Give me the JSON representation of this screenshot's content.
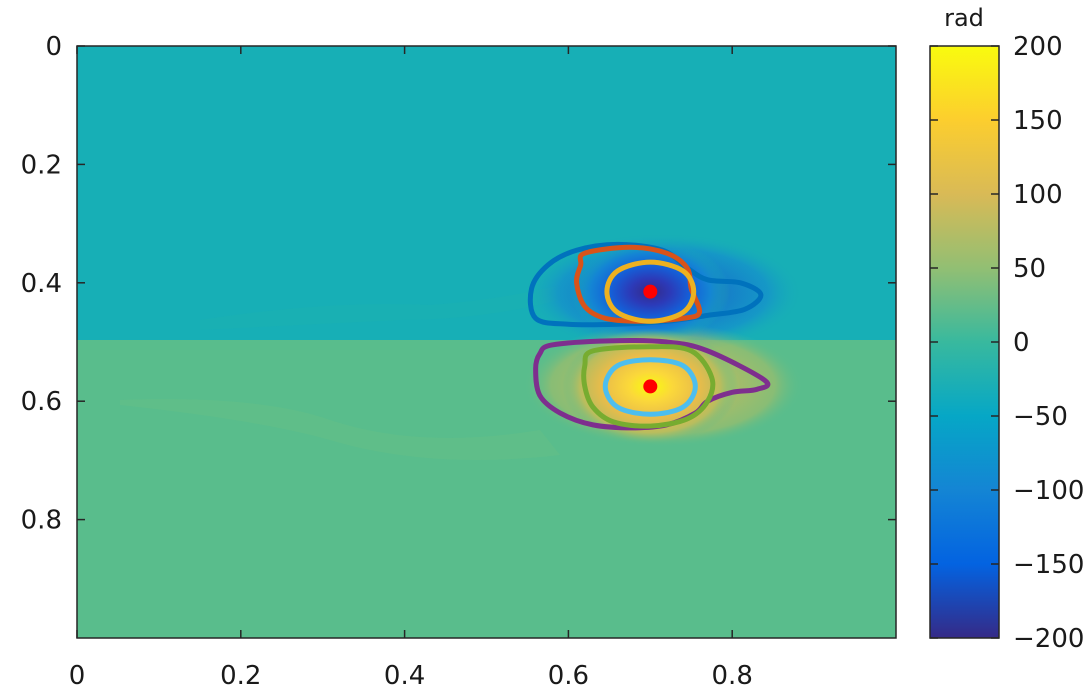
{
  "chart_data": {
    "type": "heatmap",
    "title": "",
    "xlabel": "",
    "ylabel": "",
    "xlim": [
      0,
      1
    ],
    "ylim": [
      0,
      1
    ],
    "y_axis_reversed": true,
    "x_ticks": [
      0,
      0.2,
      0.4,
      0.6,
      0.8
    ],
    "x_tick_labels": [
      "0",
      "0.2",
      "0.4",
      "0.6",
      "0.8"
    ],
    "y_ticks": [
      0,
      0.2,
      0.4,
      0.6,
      0.8
    ],
    "y_tick_labels": [
      "0",
      "0.2",
      "0.4",
      "0.6",
      "0.8"
    ],
    "grid": false,
    "colormap": "parula",
    "colorbar": {
      "label": "rad",
      "range": [
        -200,
        200
      ],
      "ticks": [
        200,
        150,
        100,
        50,
        0,
        -50,
        -100,
        -150,
        -200
      ],
      "tick_labels": [
        "200",
        "150",
        "100",
        "50",
        "0",
        "−50",
        "−100",
        "−150",
        "−200"
      ]
    },
    "field": {
      "background_upper_value": -25,
      "background_lower_value": 25,
      "interface_y": 0.49,
      "negative_vortex": {
        "center": [
          0.7,
          0.415
        ],
        "peak_value": -200
      },
      "positive_vortex": {
        "center": [
          0.7,
          0.575
        ],
        "peak_value": 200
      }
    },
    "contours": [
      {
        "vortex": "negative",
        "color": "#0072bd",
        "points": [
          [
            0.56,
            0.46
          ],
          [
            0.555,
            0.41
          ],
          [
            0.575,
            0.37
          ],
          [
            0.61,
            0.345
          ],
          [
            0.66,
            0.335
          ],
          [
            0.715,
            0.345
          ],
          [
            0.745,
            0.375
          ],
          [
            0.77,
            0.395
          ],
          [
            0.81,
            0.4
          ],
          [
            0.835,
            0.42
          ],
          [
            0.815,
            0.445
          ],
          [
            0.77,
            0.455
          ],
          [
            0.72,
            0.465
          ],
          [
            0.66,
            0.47
          ],
          [
            0.6,
            0.47
          ]
        ]
      },
      {
        "vortex": "negative",
        "color": "#d95319",
        "points": [
          [
            0.62,
            0.35
          ],
          [
            0.675,
            0.34
          ],
          [
            0.72,
            0.35
          ],
          [
            0.745,
            0.375
          ],
          [
            0.75,
            0.41
          ],
          [
            0.76,
            0.45
          ],
          [
            0.74,
            0.46
          ],
          [
            0.69,
            0.465
          ],
          [
            0.645,
            0.46
          ],
          [
            0.62,
            0.44
          ],
          [
            0.61,
            0.4
          ],
          [
            0.615,
            0.37
          ]
        ]
      },
      {
        "vortex": "negative",
        "color": "#edb120",
        "points": [
          [
            0.7,
            0.365
          ],
          [
            0.74,
            0.38
          ],
          [
            0.753,
            0.415
          ],
          [
            0.74,
            0.45
          ],
          [
            0.7,
            0.465
          ],
          [
            0.66,
            0.45
          ],
          [
            0.647,
            0.415
          ],
          [
            0.66,
            0.38
          ]
        ]
      },
      {
        "vortex": "positive",
        "color": "#7e2f8e",
        "points": [
          [
            0.58,
            0.505
          ],
          [
            0.65,
            0.498
          ],
          [
            0.72,
            0.5
          ],
          [
            0.77,
            0.515
          ],
          [
            0.84,
            0.565
          ],
          [
            0.83,
            0.58
          ],
          [
            0.8,
            0.585
          ],
          [
            0.77,
            0.6
          ],
          [
            0.755,
            0.62
          ],
          [
            0.72,
            0.64
          ],
          [
            0.68,
            0.645
          ],
          [
            0.63,
            0.64
          ],
          [
            0.59,
            0.62
          ],
          [
            0.565,
            0.59
          ],
          [
            0.56,
            0.545
          ],
          [
            0.565,
            0.52
          ]
        ]
      },
      {
        "vortex": "positive",
        "color": "#77ac30",
        "points": [
          [
            0.63,
            0.515
          ],
          [
            0.7,
            0.508
          ],
          [
            0.75,
            0.515
          ],
          [
            0.775,
            0.56
          ],
          [
            0.77,
            0.6
          ],
          [
            0.745,
            0.63
          ],
          [
            0.7,
            0.642
          ],
          [
            0.655,
            0.635
          ],
          [
            0.63,
            0.61
          ],
          [
            0.62,
            0.575
          ],
          [
            0.62,
            0.54
          ]
        ]
      },
      {
        "vortex": "positive",
        "color": "#4dbeee",
        "points": [
          [
            0.7,
            0.53
          ],
          [
            0.74,
            0.54
          ],
          [
            0.755,
            0.575
          ],
          [
            0.74,
            0.61
          ],
          [
            0.7,
            0.622
          ],
          [
            0.66,
            0.61
          ],
          [
            0.645,
            0.575
          ],
          [
            0.66,
            0.54
          ]
        ]
      }
    ],
    "markers": [
      {
        "x": 0.7,
        "y": 0.415,
        "color": "#ff0000"
      },
      {
        "x": 0.7,
        "y": 0.575,
        "color": "#ff0000"
      }
    ]
  }
}
